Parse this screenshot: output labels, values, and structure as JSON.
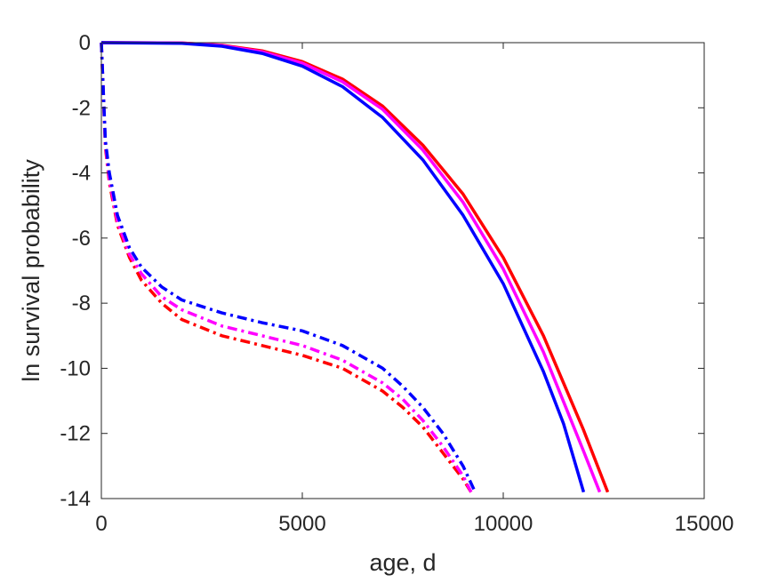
{
  "chart_data": {
    "type": "line",
    "title": "",
    "xlabel": "age, d",
    "ylabel": "ln survival probability",
    "xlim": [
      0,
      15000
    ],
    "ylim": [
      -14,
      0
    ],
    "xticks": [
      0,
      5000,
      10000,
      15000
    ],
    "xtick_labels": [
      "0",
      "5000",
      "10000",
      "15000"
    ],
    "yticks": [
      0,
      -2,
      -4,
      -6,
      -8,
      -10,
      -12,
      -14
    ],
    "ytick_labels": [
      "0",
      "-2",
      "-4",
      "-6",
      "-8",
      "-10",
      "-12",
      "-14"
    ],
    "grid": false,
    "legend": "none",
    "series": [
      {
        "style": "solid",
        "color": "#ff0000",
        "x": [
          0,
          2000,
          3000,
          4000,
          5000,
          6000,
          7000,
          8000,
          9000,
          10000,
          11000,
          12000,
          12600
        ],
        "y": [
          0,
          -0.01,
          -0.08,
          -0.25,
          -0.58,
          -1.12,
          -1.95,
          -3.15,
          -4.65,
          -6.6,
          -9.0,
          -11.9,
          -13.8
        ]
      },
      {
        "style": "solid",
        "color": "#ff00ff",
        "x": [
          0,
          2000,
          3000,
          4000,
          5000,
          6000,
          7000,
          8000,
          9000,
          10000,
          11000,
          12000,
          12400
        ],
        "y": [
          0,
          -0.01,
          -0.09,
          -0.28,
          -0.63,
          -1.2,
          -2.05,
          -3.3,
          -4.9,
          -6.95,
          -9.5,
          -12.55,
          -13.8
        ]
      },
      {
        "style": "solid",
        "color": "#0000ff",
        "x": [
          0,
          2000,
          3000,
          4000,
          5000,
          6000,
          7000,
          8000,
          9000,
          10000,
          11000,
          11500,
          12000
        ],
        "y": [
          0,
          -0.02,
          -0.11,
          -0.33,
          -0.72,
          -1.35,
          -2.3,
          -3.6,
          -5.3,
          -7.4,
          -10.1,
          -11.7,
          -13.8
        ]
      },
      {
        "style": "dash-dot",
        "color": "#ff0000",
        "x": [
          0,
          100,
          200,
          400,
          700,
          1000,
          1500,
          2000,
          3000,
          4000,
          5000,
          6000,
          7000,
          7500,
          8000,
          8500,
          9000,
          9200
        ],
        "y": [
          0,
          -3.2,
          -4.3,
          -5.6,
          -6.6,
          -7.3,
          -8.0,
          -8.5,
          -9.0,
          -9.3,
          -9.6,
          -10.0,
          -10.7,
          -11.2,
          -11.8,
          -12.6,
          -13.4,
          -13.8
        ]
      },
      {
        "style": "dash-dot",
        "color": "#ff00ff",
        "x": [
          0,
          100,
          200,
          400,
          700,
          1000,
          1500,
          2000,
          3000,
          4000,
          5000,
          6000,
          7000,
          7500,
          8000,
          8500,
          9000,
          9200
        ],
        "y": [
          0,
          -3.1,
          -4.2,
          -5.5,
          -6.5,
          -7.1,
          -7.8,
          -8.2,
          -8.7,
          -9.0,
          -9.3,
          -9.75,
          -10.45,
          -10.95,
          -11.6,
          -12.4,
          -13.3,
          -13.8
        ]
      },
      {
        "style": "dash-dot",
        "color": "#0000ff",
        "x": [
          0,
          100,
          200,
          400,
          700,
          1000,
          1500,
          2000,
          3000,
          4000,
          5000,
          6000,
          7000,
          7500,
          8000,
          8500,
          9000,
          9300
        ],
        "y": [
          0,
          -3.0,
          -4.0,
          -5.3,
          -6.3,
          -6.9,
          -7.5,
          -7.9,
          -8.3,
          -8.6,
          -8.85,
          -9.3,
          -10.0,
          -10.55,
          -11.2,
          -12.0,
          -13.0,
          -13.8
        ]
      }
    ]
  }
}
